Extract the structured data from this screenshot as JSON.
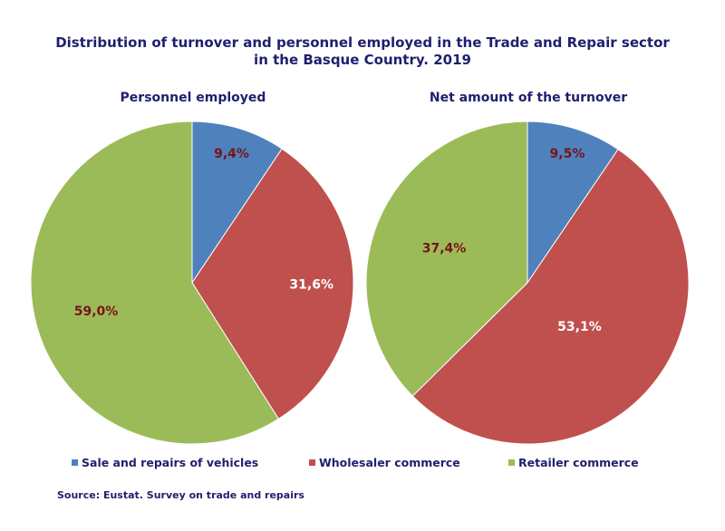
{
  "title_line1": "Distribution of turnover and personnel employed in the Trade and Repair sector",
  "title_line2": "in the Basque Country. 2019",
  "source": "Source: Eustat. Survey on trade and repairs",
  "chart_data": [
    {
      "type": "pie",
      "title": "Personnel employed",
      "categories": [
        "Sale and repairs of vehicles",
        "Wholesaler commerce",
        "Retailer commerce"
      ],
      "values": [
        9.4,
        31.6,
        59.0
      ],
      "labels": [
        "9,4%",
        "31,6%",
        "59,0%"
      ],
      "colors": [
        "#4f81bd",
        "#c0504d",
        "#9bbb59"
      ]
    },
    {
      "type": "pie",
      "title": "Net amount of the turnover",
      "categories": [
        "Sale and repairs of vehicles",
        "Wholesaler commerce",
        "Retailer commerce"
      ],
      "values": [
        9.5,
        53.1,
        37.4
      ],
      "labels": [
        "9,5%",
        "53,1%",
        "37,4%"
      ],
      "colors": [
        "#4f81bd",
        "#c0504d",
        "#9bbb59"
      ]
    }
  ],
  "legend": [
    {
      "label": "Sale and repairs of vehicles",
      "color": "#4f81bd"
    },
    {
      "label": "Wholesaler commerce",
      "color": "#c0504d"
    },
    {
      "label": "Retailer commerce",
      "color": "#9bbb59"
    }
  ],
  "label_color_dark": "#7b1216",
  "label_color_light": "#ffffff"
}
